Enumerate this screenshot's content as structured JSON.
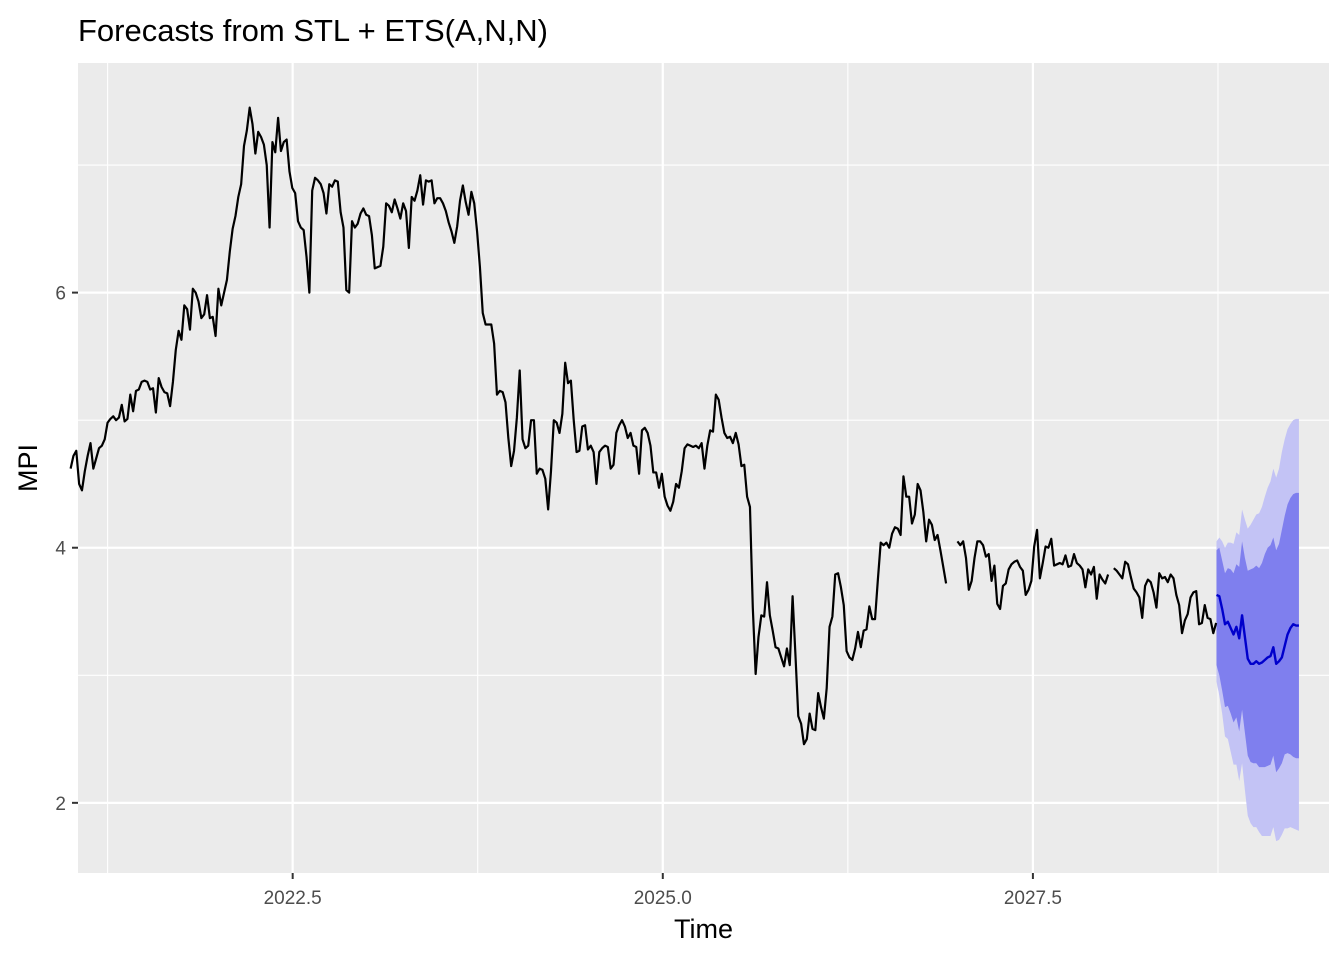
{
  "chart_data": {
    "type": "line",
    "title": "Forecasts from STL +  ETS(A,N,N)",
    "xlabel": "Time",
    "ylabel": "MPI",
    "xlim": [
      2021.05,
      2029.5
    ],
    "ylim": [
      1.45,
      7.8
    ],
    "x_ticks": [
      2022.5,
      2025.0,
      2027.5
    ],
    "x_tick_labels": [
      "2022.5",
      "2025.0",
      "2027.5"
    ],
    "y_ticks": [
      2,
      4,
      6
    ],
    "y_tick_labels": [
      "2",
      "4",
      "6"
    ],
    "grid": true,
    "colors": {
      "panel": "#ebebeb",
      "grid_major": "#ffffff",
      "history": "#000000",
      "forecast": "#0000cc",
      "interval_80": "#7f7fee",
      "interval_95": "#c3c3f5"
    },
    "history": {
      "name": "",
      "start": 2021.0,
      "step": 0.0192,
      "values": [
        4.62,
        4.72,
        4.76,
        4.5,
        4.45,
        4.6,
        4.72,
        4.82,
        4.62,
        4.7,
        4.78,
        4.8,
        4.85,
        4.98,
        5.01,
        5.03,
        5.0,
        5.02,
        5.12,
        4.99,
        5.01,
        5.2,
        5.07,
        5.23,
        5.24,
        5.3,
        5.31,
        5.3,
        5.24,
        5.25,
        5.06,
        5.33,
        5.26,
        5.22,
        5.21,
        5.11,
        5.3,
        5.55,
        5.7,
        5.63,
        5.9,
        5.87,
        5.71,
        6.03,
        6.0,
        5.93,
        5.8,
        5.83,
        5.98,
        5.8,
        5.81,
        5.66,
        6.03,
        5.9,
        6.0,
        6.1,
        6.32,
        6.5,
        6.6,
        6.75,
        6.85,
        7.15,
        7.27,
        7.45,
        7.32,
        7.09,
        7.26,
        7.22,
        7.16,
        7.0,
        6.51,
        7.18,
        7.1,
        7.37,
        7.11,
        7.18,
        7.2,
        6.95,
        6.82,
        6.78,
        6.56,
        6.51,
        6.49,
        6.28,
        6.0,
        6.8,
        6.9,
        6.88,
        6.85,
        6.78,
        6.62,
        6.85,
        6.83,
        6.88,
        6.87,
        6.63,
        6.51,
        6.02,
        6.0,
        6.56,
        6.51,
        6.54,
        6.62,
        6.66,
        6.61,
        6.6,
        6.45,
        6.19,
        6.2,
        6.21,
        6.36,
        6.7,
        6.68,
        6.63,
        6.73,
        6.66,
        6.58,
        6.7,
        6.64,
        6.35,
        6.75,
        6.72,
        6.8,
        6.92,
        6.69,
        6.88,
        6.87,
        6.88,
        6.7,
        6.74,
        6.74,
        6.7,
        6.64,
        6.55,
        6.48,
        6.39,
        6.52,
        6.72,
        6.84,
        6.71,
        6.61,
        6.79,
        6.7,
        6.48,
        6.2,
        5.84,
        5.75,
        5.75,
        5.75,
        5.6,
        5.2,
        5.23,
        5.22,
        5.14,
        4.86,
        4.64,
        4.76,
        5.02,
        5.39,
        4.85,
        4.78,
        4.8,
        5.0,
        5.0,
        4.58,
        4.62,
        4.61,
        4.54,
        4.3,
        4.6,
        5.0,
        4.98,
        4.9,
        5.05,
        5.45,
        5.29,
        5.31,
        5.0,
        4.75,
        4.76,
        4.95,
        4.96,
        4.77,
        4.8,
        4.75,
        4.5,
        4.75,
        4.78,
        4.8,
        4.79,
        4.62,
        4.65,
        4.9,
        4.96,
        5.0,
        4.95,
        4.86,
        4.9,
        4.8,
        4.79,
        4.58,
        4.92,
        4.94,
        4.9,
        4.8,
        4.59,
        4.59,
        4.47,
        4.58,
        4.4,
        4.33,
        4.29,
        4.36,
        4.5,
        4.47,
        4.6,
        4.78,
        4.81,
        4.8,
        4.79,
        4.8,
        4.78,
        4.82,
        4.62,
        4.8,
        4.92,
        4.91,
        5.2,
        5.16,
        5.02,
        4.9,
        4.86,
        4.87,
        4.82,
        4.9,
        4.81,
        4.64,
        4.65,
        4.4,
        4.32,
        3.53,
        3.01,
        3.3,
        3.47,
        3.46,
        3.73,
        3.47,
        3.35,
        3.22,
        3.21,
        3.14,
        3.07,
        3.21,
        3.08,
        3.62,
        3.16,
        2.68,
        2.62,
        2.46,
        2.5,
        2.7,
        2.58,
        2.57,
        2.86,
        2.75,
        2.66,
        2.9,
        3.38,
        3.46,
        3.79,
        3.8,
        3.69,
        3.55,
        3.19,
        3.14,
        3.12,
        3.21,
        3.34,
        3.22,
        3.35,
        3.36,
        3.54,
        3.44,
        3.44,
        3.75,
        4.04,
        4.02,
        4.04,
        4.0,
        4.11,
        4.16,
        4.15,
        4.1,
        4.56,
        4.4,
        4.4,
        4.19,
        4.26,
        4.5,
        4.45,
        4.28,
        4.05,
        4.22,
        4.18,
        4.06,
        4.1,
        3.98,
        3.85,
        3.72,
        null,
        null,
        null,
        4.05,
        4.02,
        4.05,
        3.92,
        3.67,
        3.74,
        3.92,
        4.05,
        4.05,
        4.02,
        3.93,
        3.95,
        3.74,
        3.86,
        3.56,
        3.52,
        3.7,
        3.72,
        3.83,
        3.87,
        3.89,
        3.9,
        3.85,
        3.82,
        3.63,
        3.67,
        3.74,
        4.01,
        4.14,
        3.76,
        3.88,
        4.01,
        4.0,
        4.07,
        3.86,
        3.87,
        3.88,
        3.87,
        3.94,
        3.85,
        3.86,
        3.95,
        3.88,
        3.86,
        3.83,
        3.69,
        3.83,
        3.79,
        3.85,
        3.6,
        3.79,
        3.75,
        3.72,
        3.79,
        null,
        3.84,
        3.82,
        3.79,
        3.76,
        3.89,
        3.87,
        3.77,
        3.68,
        3.65,
        3.61,
        3.45,
        3.7,
        3.75,
        3.73,
        3.65,
        3.53,
        3.8,
        3.76,
        3.77,
        3.73,
        3.79,
        3.76,
        3.63,
        3.55,
        3.33,
        3.43,
        3.48,
        3.61,
        3.65,
        3.66,
        3.4,
        3.41,
        3.55,
        3.45,
        3.44,
        3.33,
        3.41
      ]
    },
    "forecast": {
      "name": "",
      "start": 2028.74,
      "step": 0.0192,
      "mean": [
        3.63,
        3.62,
        3.52,
        3.4,
        3.42,
        3.37,
        3.32,
        3.38,
        3.29,
        3.47,
        3.3,
        3.13,
        3.09,
        3.09,
        3.11,
        3.09,
        3.1,
        3.12,
        3.14,
        3.15,
        3.22,
        3.09,
        3.11,
        3.14,
        3.23,
        3.32,
        3.37,
        3.4,
        3.39,
        3.39
      ],
      "lo80": [
        3.08,
        3.0,
        2.88,
        2.75,
        2.76,
        2.7,
        2.63,
        2.67,
        2.56,
        2.73,
        2.55,
        2.37,
        2.32,
        2.31,
        2.31,
        2.28,
        2.28,
        2.28,
        2.29,
        2.3,
        2.37,
        2.24,
        2.27,
        2.31,
        2.38,
        2.39,
        2.38,
        2.36,
        2.35,
        2.35
      ],
      "hi80": [
        3.98,
        4.0,
        3.9,
        3.8,
        3.84,
        3.83,
        3.8,
        3.87,
        3.85,
        4.05,
        3.92,
        3.82,
        3.83,
        3.84,
        3.86,
        3.84,
        3.88,
        3.95,
        4.0,
        4.02,
        4.08,
        3.98,
        4.03,
        4.14,
        4.25,
        4.34,
        4.39,
        4.42,
        4.43,
        4.43
      ],
      "lo95": [
        2.95,
        2.84,
        2.7,
        2.52,
        2.5,
        2.4,
        2.3,
        2.3,
        2.17,
        2.31,
        2.1,
        1.9,
        1.84,
        1.81,
        1.81,
        1.77,
        1.74,
        1.74,
        1.74,
        1.74,
        1.81,
        1.7,
        1.71,
        1.75,
        1.8,
        1.8,
        1.81,
        1.8,
        1.79,
        1.78
      ],
      "hi95": [
        4.05,
        4.08,
        4.05,
        4.0,
        4.04,
        4.04,
        4.03,
        4.12,
        4.1,
        4.3,
        4.22,
        4.15,
        4.18,
        4.22,
        4.26,
        4.27,
        4.32,
        4.4,
        4.47,
        4.52,
        4.62,
        4.55,
        4.62,
        4.75,
        4.85,
        4.93,
        4.97,
        5.0,
        5.01,
        5.01
      ]
    }
  }
}
